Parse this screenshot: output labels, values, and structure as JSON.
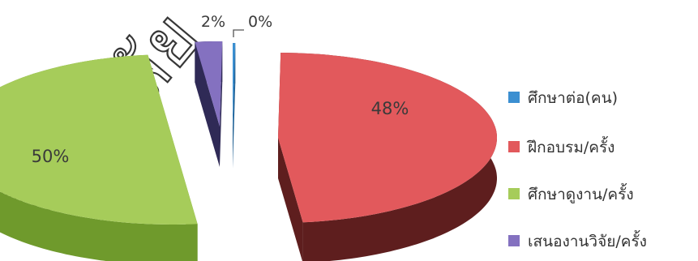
{
  "watermark": "วิทยาลัย",
  "chart_data": {
    "type": "pie",
    "style": "3d-exploded",
    "legend_position": "right",
    "series": [
      {
        "label": "ศึกษาต่อ(คน)",
        "value": 0,
        "percent_label": "0%",
        "color": "#3b8fd1",
        "side_color": "#1f5f92"
      },
      {
        "label": "ฝึกอบรม/ครั้ง",
        "value": 48,
        "percent_label": "48%",
        "color": "#e2595c",
        "side_color": "#5e1e1e"
      },
      {
        "label": "ศึกษาดูงาน/ครั้ง",
        "value": 50,
        "percent_label": "50%",
        "color": "#a6cc5a",
        "side_color": "#6f9a2c"
      },
      {
        "label": "เสนองานวิจัย/ครั้ง",
        "value": 2,
        "percent_label": "2%",
        "color": "#8471c0",
        "side_color": "#2f2a56"
      }
    ]
  }
}
